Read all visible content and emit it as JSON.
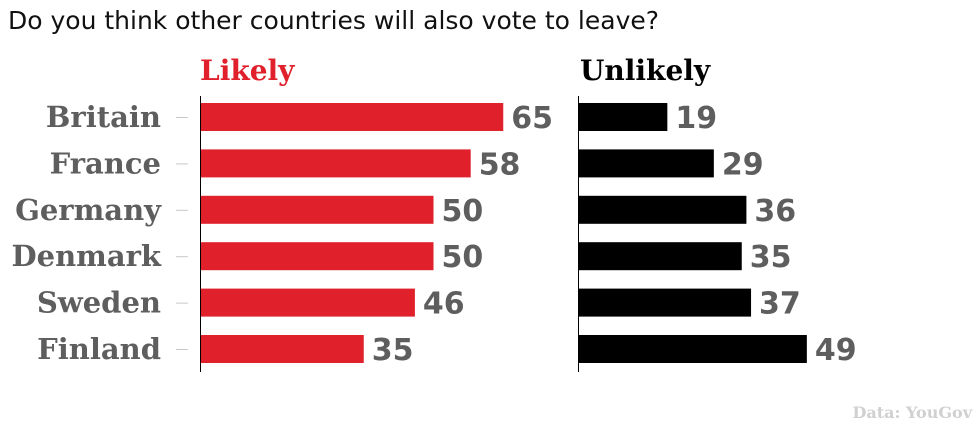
{
  "chart_data": {
    "type": "bar",
    "title": "Do you think other countries will also vote to leave?",
    "categories": [
      "Britain",
      "France",
      "Germany",
      "Denmark",
      "Sweden",
      "Finland"
    ],
    "series": [
      {
        "name": "Likely",
        "values": [
          65,
          58,
          50,
          50,
          46,
          35
        ],
        "color": "#e0202b"
      },
      {
        "name": "Unlikely",
        "values": [
          19,
          29,
          36,
          35,
          37,
          49
        ],
        "color": "#000000"
      }
    ],
    "source": "Data: YouGov",
    "orientation": "horizontal",
    "layout": "small-multiples side by side",
    "grid": false
  }
}
